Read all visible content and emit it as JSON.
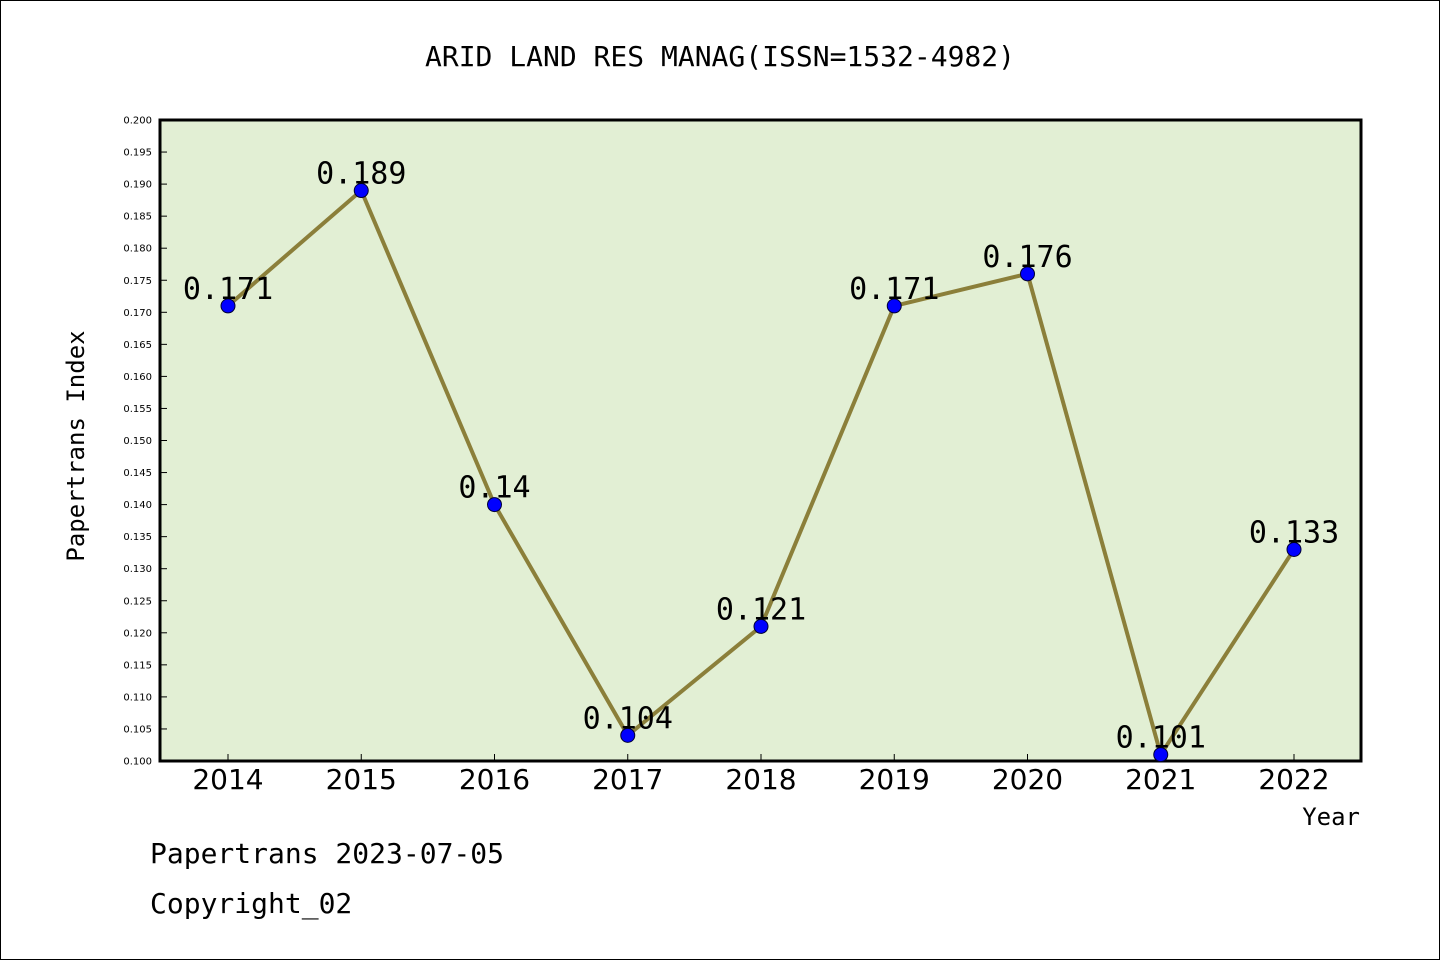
{
  "chart_data": {
    "type": "line",
    "title": "ARID LAND RES MANAG(ISSN=1532-4982)",
    "xlabel": "Year",
    "ylabel": "Papertrans Index",
    "categories": [
      "2014",
      "2015",
      "2016",
      "2017",
      "2018",
      "2019",
      "2020",
      "2021",
      "2022"
    ],
    "values": [
      0.171,
      0.189,
      0.14,
      0.104,
      0.121,
      0.171,
      0.176,
      0.101,
      0.133
    ],
    "data_labels": [
      "0.171",
      "0.189",
      "0.14",
      "0.104",
      "0.121",
      "0.171",
      "0.176",
      "0.101",
      "0.133"
    ],
    "ylim": [
      0.1,
      0.2
    ],
    "yticks": [
      "0.100",
      "0.105",
      "0.110",
      "0.115",
      "0.120",
      "0.125",
      "0.130",
      "0.135",
      "0.140",
      "0.145",
      "0.150",
      "0.155",
      "0.160",
      "0.165",
      "0.170",
      "0.175",
      "0.180",
      "0.185",
      "0.190",
      "0.195",
      "0.200"
    ],
    "grid": false,
    "colors": {
      "plot_background": "#e2efd4",
      "line": "#8b7f3a",
      "marker": "#0000ff"
    }
  },
  "footer": {
    "line1": "Papertrans 2023-07-05",
    "line2": "Copyright_02"
  }
}
